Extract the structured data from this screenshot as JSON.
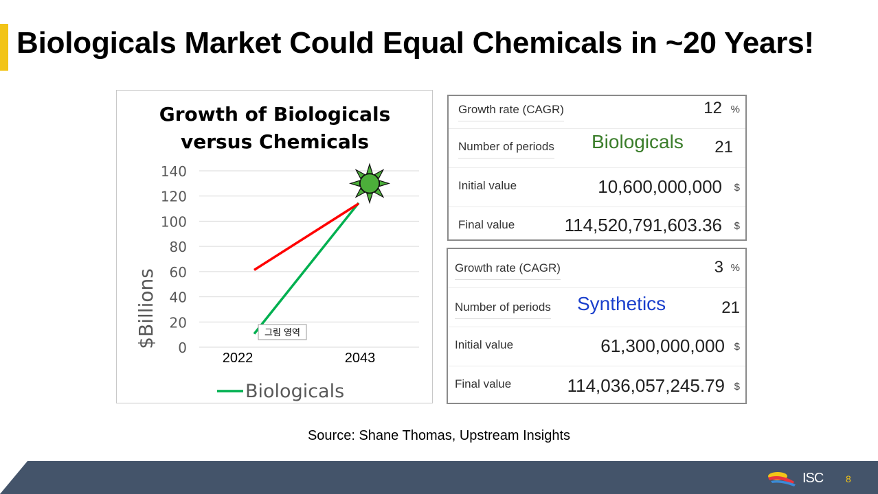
{
  "slide": {
    "title": "Biologicals Market Could Equal Chemicals in ~20 Years!",
    "source": "Source: Shane Thomas, Upstream Insights",
    "page_number": "8",
    "logo_text": "ISC"
  },
  "chart_data": {
    "type": "line",
    "title": "Growth of Biologicals versus Chemicals",
    "title_lines": [
      "Growth of Biologicals",
      "versus Chemicals"
    ],
    "ylabel": "$Billions",
    "xlabel": "",
    "categories": [
      "2022",
      "2043"
    ],
    "yticks": [
      "0",
      "20",
      "40",
      "60",
      "80",
      "100",
      "120",
      "140"
    ],
    "ylim": [
      0,
      140
    ],
    "series": [
      {
        "name": "Biologicals",
        "values": [
          10.6,
          114.5
        ],
        "color": "#00b050"
      },
      {
        "name": "Chemicals",
        "values": [
          61.3,
          114.0
        ],
        "color": "#ff0000"
      }
    ],
    "legend": [
      {
        "name": "Biologicals",
        "color": "#00b050"
      }
    ],
    "legend_position": "bottom",
    "annotation_tooltip": "그림 영역",
    "marker": {
      "series": "Biologicals",
      "category": "2043",
      "value": 130,
      "shape": "sun",
      "fill": "#4caf3a"
    }
  },
  "calculators": {
    "biologicals": {
      "name": "Biologicals",
      "name_color": "#3a7d2a",
      "rows": [
        {
          "label": "Growth rate (CAGR)",
          "value": "12",
          "unit": "%"
        },
        {
          "label": "Number of periods",
          "value": "21",
          "unit": ""
        },
        {
          "label": "Initial value",
          "value": "10,600,000,000",
          "unit": "$"
        },
        {
          "label": "Final value",
          "value": "114,520,791,603.36",
          "unit": "$"
        }
      ]
    },
    "synthetics": {
      "name": "Synthetics",
      "name_color": "#1a3fcc",
      "rows": [
        {
          "label": "Growth rate (CAGR)",
          "value": "3",
          "unit": "%"
        },
        {
          "label": "Number of periods",
          "value": "21",
          "unit": ""
        },
        {
          "label": "Initial value",
          "value": "61,300,000,000",
          "unit": "$"
        },
        {
          "label": "Final value",
          "value": "114,036,057,245.79",
          "unit": "$"
        }
      ]
    }
  },
  "colors": {
    "accent": "#f2c417",
    "footer": "#44546a"
  }
}
